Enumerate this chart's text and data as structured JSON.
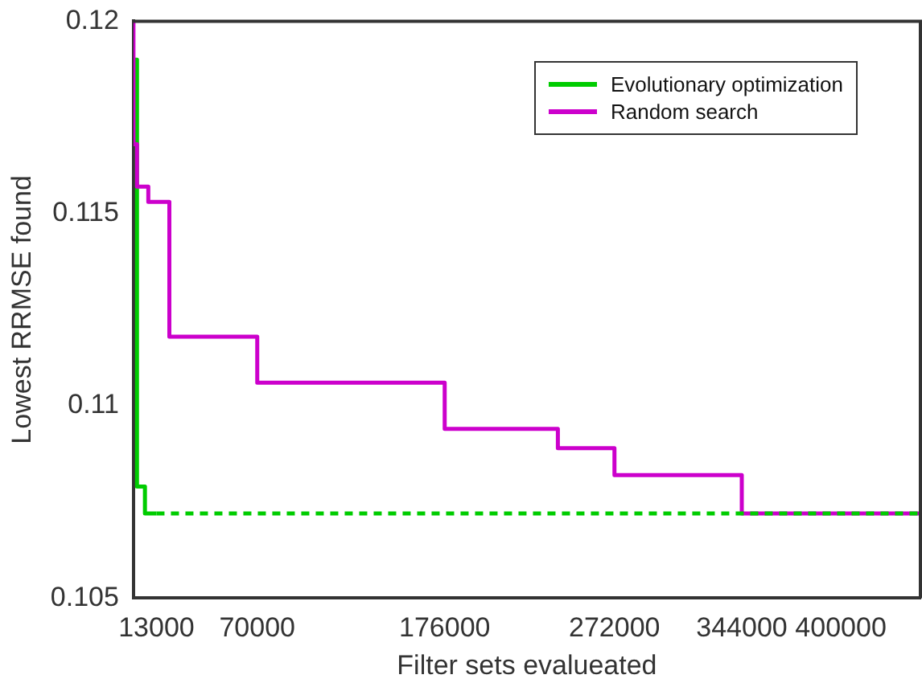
{
  "chart_data": {
    "type": "step",
    "xlabel": "Filter sets evalueated",
    "ylabel": "Lowest RRMSE found",
    "xlim": [
      0,
      445000
    ],
    "xticks": [
      13000,
      70000,
      176000,
      272000,
      344000,
      400000
    ],
    "ylim": [
      0.105,
      0.12
    ],
    "yticks": [
      0.105,
      0.11,
      0.115,
      0.12
    ],
    "grid": false,
    "legend": "top right",
    "series": [
      {
        "name": "Evolutionary optimization",
        "color": "#00cc00",
        "x": [
          0,
          2000,
          6500,
          13000
        ],
        "values": [
          0.119,
          0.1079,
          0.1072,
          0.1072
        ]
      },
      {
        "name": "Random search",
        "color": "#cc00cc",
        "x": [
          0,
          0,
          2000,
          8400,
          20300,
          70000,
          176000,
          240000,
          272000,
          344000,
          445000
        ],
        "values": [
          0.12,
          0.1168,
          0.1157,
          0.1153,
          0.1118,
          0.1106,
          0.1094,
          0.1089,
          0.1082,
          0.1072,
          0.1072
        ]
      },
      {
        "color": "#00cc00",
        "line_style": "dashed",
        "x": [
          13000,
          445000
        ],
        "values": [
          0.1072,
          0.1072
        ]
      }
    ]
  }
}
